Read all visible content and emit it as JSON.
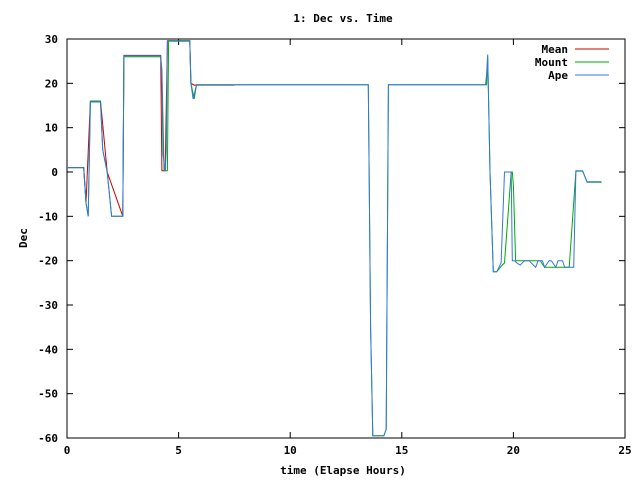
{
  "chart_data": {
    "type": "line",
    "title": "1: Dec vs. Time",
    "xlabel": "time (Elapse Hours)",
    "ylabel": "Dec",
    "xlim": [
      0,
      25
    ],
    "ylim": [
      -60,
      30
    ],
    "xticks": [
      0,
      5,
      10,
      15,
      20,
      25
    ],
    "yticks": [
      -60,
      -50,
      -40,
      -30,
      -20,
      -10,
      0,
      10,
      20,
      30
    ],
    "grid": false,
    "legend_position": "top-right",
    "series": [
      {
        "name": "Mean",
        "color": "#cc0000",
        "x": [
          0,
          0.75,
          0.85,
          1.05,
          1.5,
          1.8,
          2.5,
          2.55,
          4.2,
          4.25,
          4.4,
          4.5,
          4.55,
          5.5,
          5.55,
          5.7,
          5.75,
          7.5
        ],
        "y": [
          1,
          1,
          -7,
          16,
          16,
          0,
          -10,
          26.3,
          26.3,
          0.3,
          0.3,
          29.6,
          29.6,
          29.6,
          20,
          19.6,
          19.6,
          19.6
        ]
      },
      {
        "name": "Mount",
        "color": "#00aa00",
        "x": [
          0,
          0.75,
          0.85,
          0.95,
          1.05,
          1.5,
          1.6,
          1.8,
          2.0,
          2.5,
          2.55,
          4.2,
          4.25,
          4.35,
          4.5,
          4.55,
          5.5,
          5.55,
          5.7,
          5.8,
          13.5,
          13.6,
          13.7,
          14.2,
          14.3,
          14.4,
          18.8,
          18.85,
          18.95,
          19.1,
          19.25,
          19.5,
          19.6,
          19.9,
          19.95,
          20.0,
          20.1,
          21.2,
          21.4,
          22.5,
          22.8,
          22.85,
          23.1,
          23.3,
          23.95
        ],
        "y": [
          1,
          1,
          -7,
          -10,
          16,
          16,
          5,
          0,
          -10,
          -10,
          26,
          26,
          23,
          0.3,
          0.3,
          29.6,
          29.6,
          20,
          16.5,
          19.7,
          19.7,
          -35,
          -59.5,
          -59.5,
          -58,
          19.7,
          19.7,
          26,
          0,
          -22.5,
          -22.5,
          -21,
          -20.5,
          0,
          0,
          -3,
          -20,
          -20,
          -21.5,
          -21.5,
          0.2,
          0.2,
          0.2,
          -2.3,
          -2.3
        ]
      },
      {
        "name": "Ape",
        "color": "#3377dd",
        "x": [
          0,
          0.75,
          0.85,
          0.95,
          1.05,
          1.5,
          1.6,
          1.8,
          2.0,
          2.5,
          2.55,
          4.2,
          4.25,
          4.3,
          4.4,
          4.45,
          4.5,
          5.5,
          5.55,
          5.65,
          5.8,
          13.5,
          13.6,
          13.7,
          14.2,
          14.3,
          14.4,
          18.75,
          18.8,
          18.85,
          18.95,
          19.1,
          19.25,
          19.35,
          19.45,
          19.6,
          19.9,
          19.95,
          20.05,
          20.15,
          20.3,
          20.5,
          20.7,
          21.0,
          21.1,
          21.3,
          21.4,
          21.6,
          21.7,
          21.9,
          22.0,
          22.2,
          22.3,
          22.5,
          22.7,
          22.8,
          22.85,
          23.1,
          23.3,
          23.95
        ],
        "y": [
          1,
          1,
          -7,
          -10,
          15.8,
          15.8,
          5,
          0,
          -10,
          -10,
          26.2,
          26.2,
          22,
          4,
          0.2,
          5,
          29.5,
          29.5,
          20,
          16.5,
          19.7,
          19.7,
          -35,
          -59.5,
          -59.5,
          -58,
          19.7,
          19.7,
          22,
          26.5,
          0,
          -22.5,
          -22.5,
          -21.5,
          -20.5,
          0,
          0,
          -20,
          -20,
          -20.5,
          -21,
          -20,
          -20,
          -21.5,
          -20,
          -20,
          -21.5,
          -20,
          -20,
          -21.5,
          -20,
          -20,
          -21.5,
          -21.5,
          -21.5,
          0.3,
          0.3,
          0.3,
          -2.2,
          -2.2
        ]
      }
    ]
  }
}
